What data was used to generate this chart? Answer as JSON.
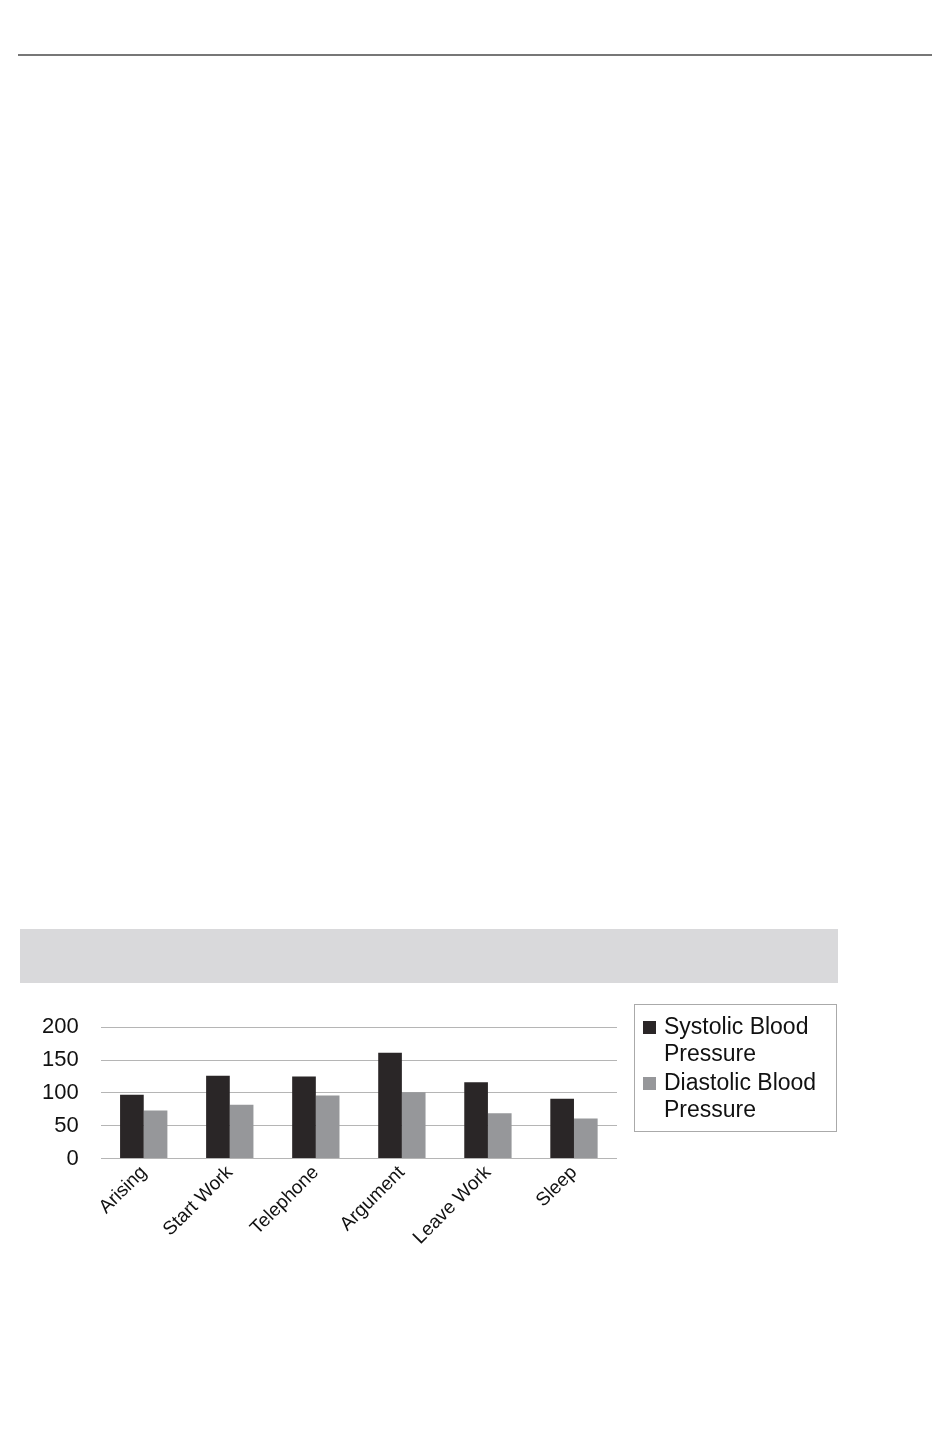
{
  "chart_data": {
    "type": "bar",
    "categories": [
      "Arising",
      "Start Work",
      "Telephone",
      "Argument",
      "Leave Work",
      "Sleep"
    ],
    "series": [
      {
        "name": "Systolic Blood Pressure",
        "color": "#2a2627",
        "values": [
          97,
          126,
          125,
          161,
          116,
          91
        ]
      },
      {
        "name": "Diastolic Blood Pressure",
        "color": "#96979a",
        "values": [
          73,
          82,
          96,
          101,
          69,
          61
        ]
      }
    ],
    "ylim": [
      0,
      200
    ],
    "yticks": [
      0,
      50,
      100,
      150,
      200
    ],
    "grid": "y",
    "legend": "right"
  }
}
